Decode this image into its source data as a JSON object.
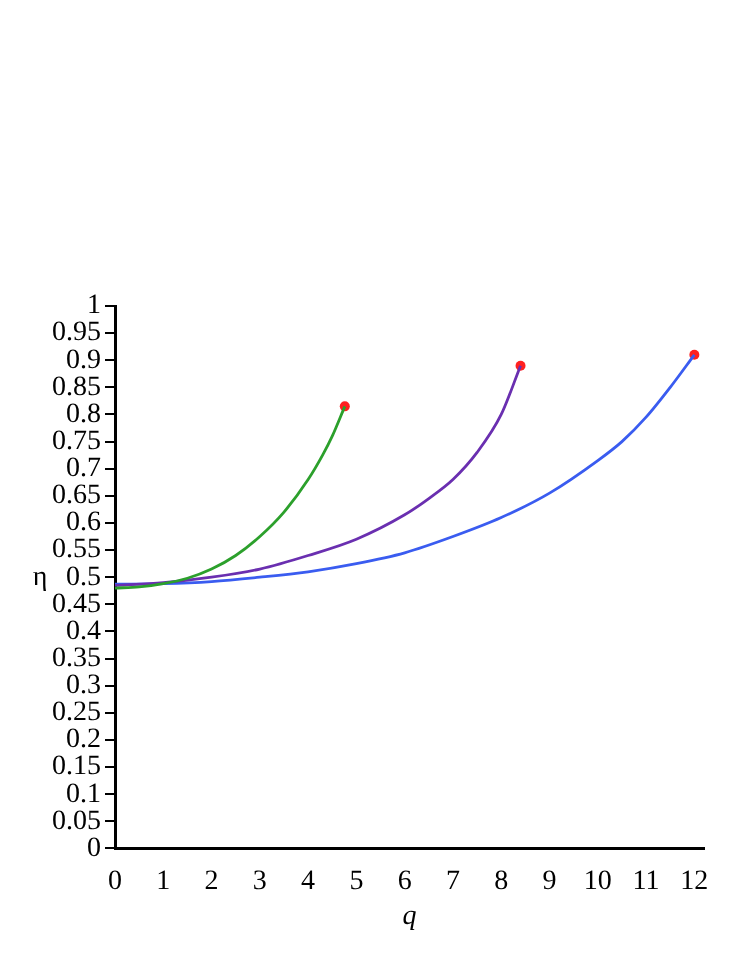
{
  "chart_data": {
    "type": "line",
    "xlabel": "q",
    "ylabel": "η",
    "xlim": [
      0,
      12.2
    ],
    "xticks": [
      0,
      1,
      2,
      3,
      4,
      5,
      6,
      7,
      8,
      9,
      10,
      11,
      12
    ],
    "ylim": [
      0,
      1
    ],
    "yticks": [
      0,
      0.05,
      0.1,
      0.15,
      0.2,
      0.25,
      0.3,
      0.35,
      0.4,
      0.45,
      0.5,
      0.55,
      0.6,
      0.65,
      0.7,
      0.75,
      0.8,
      0.85,
      0.9,
      0.95,
      1
    ],
    "grid": false,
    "legend": false,
    "marker": "none",
    "line_style": "solid",
    "series": [
      {
        "color": "#2ca02c",
        "x": [
          0,
          0.5,
          1,
          1.5,
          2,
          2.5,
          3,
          3.5,
          4,
          4.3,
          4.5,
          4.76
        ],
        "values": [
          0.48,
          0.482,
          0.488,
          0.498,
          0.515,
          0.54,
          0.575,
          0.62,
          0.68,
          0.725,
          0.76,
          0.815
        ]
      },
      {
        "color": "#6a2fb0",
        "x": [
          0,
          1,
          2,
          3,
          4,
          5,
          6,
          6.5,
          7,
          7.5,
          8,
          8.4
        ],
        "values": [
          0.485,
          0.49,
          0.5,
          0.515,
          0.54,
          0.57,
          0.615,
          0.645,
          0.68,
          0.73,
          0.8,
          0.89
        ]
      },
      {
        "color": "#3a5cf0",
        "x": [
          0,
          1,
          2,
          3,
          4,
          5,
          6,
          7,
          8,
          9,
          10,
          10.5,
          11,
          11.5,
          12
        ],
        "values": [
          0.487,
          0.488,
          0.492,
          0.5,
          0.51,
          0.525,
          0.545,
          0.575,
          0.61,
          0.655,
          0.715,
          0.75,
          0.795,
          0.85,
          0.91
        ]
      },
      {
        "type": "scatter",
        "marker": "circle",
        "color": "#ff2020",
        "x": [
          4.76,
          8.4,
          12
        ],
        "values": [
          0.815,
          0.89,
          0.91
        ]
      }
    ]
  }
}
